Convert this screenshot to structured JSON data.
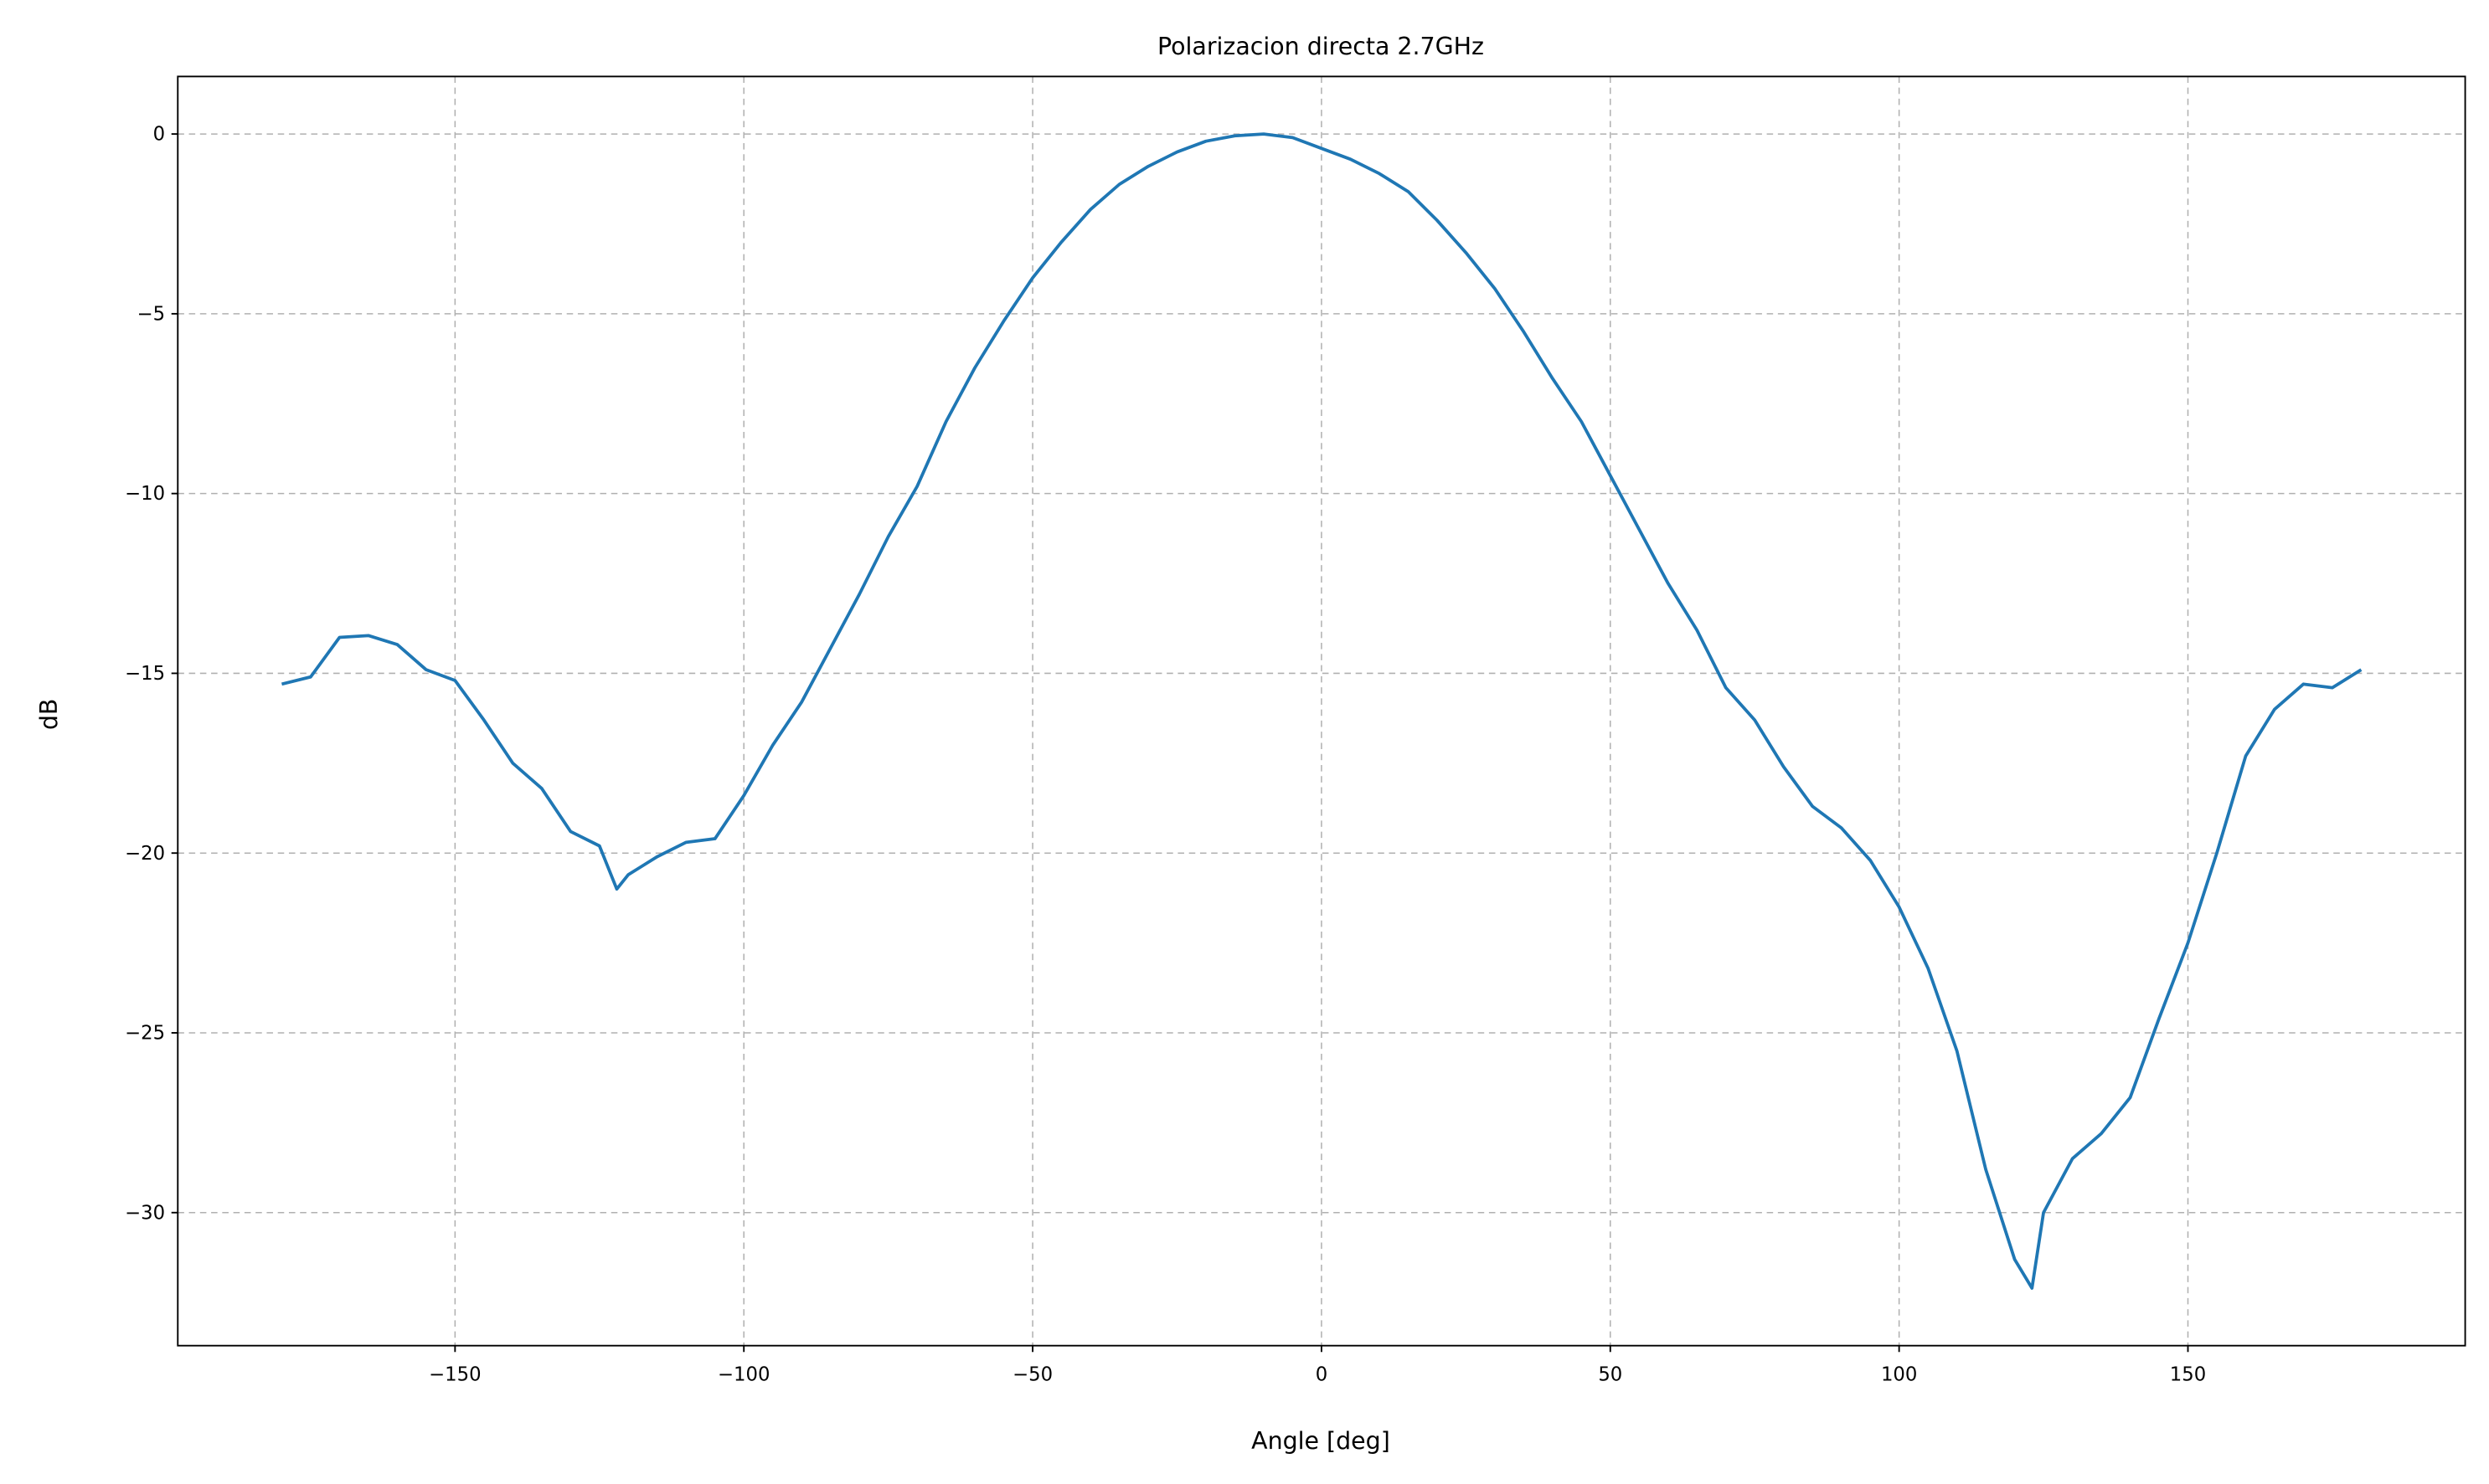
{
  "chart_data": {
    "type": "line",
    "title": "Polarizacion directa 2.7GHz",
    "x_label": "Angle [deg]",
    "y_label": "dB",
    "x": [
      -180,
      -175,
      -170,
      -165,
      -160,
      -155,
      -150,
      -145,
      -140,
      -135,
      -130,
      -125,
      -122,
      -120,
      -115,
      -110,
      -105,
      -100,
      -95,
      -90,
      -85,
      -80,
      -75,
      -70,
      -65,
      -60,
      -55,
      -50,
      -45,
      -40,
      -35,
      -30,
      -25,
      -20,
      -15,
      -10,
      -5,
      0,
      5,
      10,
      15,
      20,
      25,
      30,
      35,
      40,
      45,
      50,
      55,
      60,
      65,
      70,
      75,
      80,
      85,
      90,
      95,
      100,
      105,
      110,
      115,
      120,
      123,
      125,
      130,
      135,
      140,
      145,
      150,
      155,
      160,
      165,
      170,
      175,
      180
    ],
    "series": [
      {
        "name": "dB",
        "color": "#1f77b4",
        "values": [
          -15.3,
          -15.1,
          -14.0,
          -13.95,
          -14.2,
          -14.9,
          -15.2,
          -16.3,
          -17.5,
          -18.2,
          -19.4,
          -19.8,
          -21.0,
          -20.6,
          -20.1,
          -19.7,
          -19.6,
          -18.4,
          -17.0,
          -15.8,
          -14.3,
          -12.8,
          -11.2,
          -9.8,
          -8.0,
          -6.5,
          -5.2,
          -4.0,
          -3.0,
          -2.1,
          -1.4,
          -0.9,
          -0.5,
          -0.2,
          -0.05,
          0,
          -0.1,
          -0.4,
          -0.7,
          -1.1,
          -1.6,
          -2.4,
          -3.3,
          -4.3,
          -5.5,
          -6.8,
          -8.0,
          -9.5,
          -11.0,
          -12.5,
          -13.8,
          -15.4,
          -16.3,
          -17.6,
          -18.7,
          -19.3,
          -20.2,
          -21.5,
          -23.2,
          -25.5,
          -28.8,
          -31.3,
          -32.1,
          -30.0,
          -28.5,
          -27.8,
          -26.8,
          -24.6,
          -22.5,
          -20.0,
          -17.3,
          -16.0,
          -15.3,
          -15.4,
          -14.9
        ]
      }
    ],
    "xlim": [
      -198,
      198
    ],
    "ylim": [
      -33.7,
      1.6
    ],
    "xticks": [
      {
        "value": -150,
        "label": "−150"
      },
      {
        "value": -100,
        "label": "−100"
      },
      {
        "value": -50,
        "label": "−50"
      },
      0,
      50,
      100,
      150
    ],
    "yticks": [
      0,
      {
        "value": -5,
        "label": "−5"
      },
      {
        "value": -10,
        "label": "−10"
      },
      {
        "value": -15,
        "label": "−15"
      },
      {
        "value": -20,
        "label": "−20"
      },
      {
        "value": -25,
        "label": "−25"
      },
      {
        "value": -30,
        "label": "−30"
      }
    ],
    "grid": true
  }
}
